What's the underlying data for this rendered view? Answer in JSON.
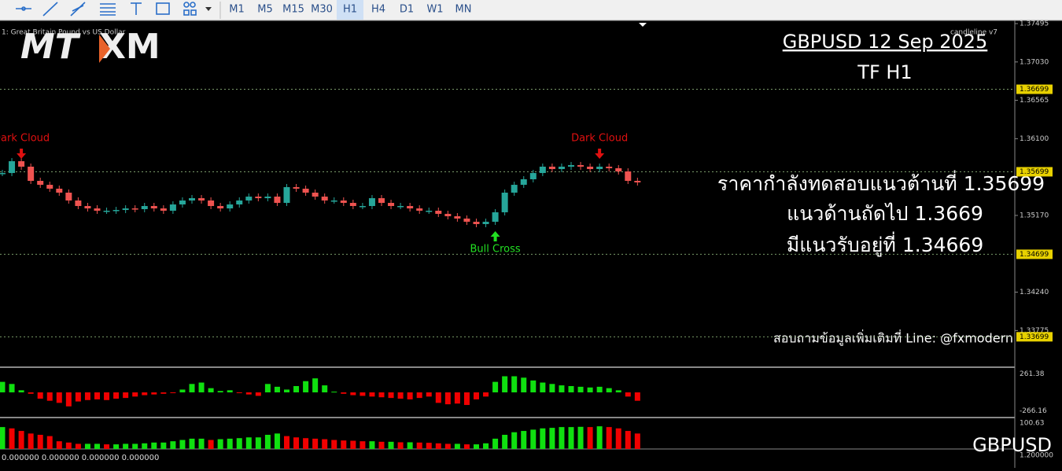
{
  "toolbar": {
    "timeframes": [
      "M1",
      "M5",
      "M15",
      "M30",
      "H1",
      "H4",
      "D1",
      "W1",
      "MN"
    ],
    "selected": "H1"
  },
  "chart": {
    "symbol_label": "1:  Great Britain Pound vs US Dollar",
    "indicator_label": "candleline v7",
    "logo": [
      "MT",
      "XM"
    ],
    "title": "GBPUSD 12 Sep 2025",
    "timeframe": "TF H1",
    "notes": [
      "ราคากำลังทดสอบแนวต้านที่  1.35699",
      "แนวด้านถัดไป 1.3669",
      "มีแนวรับอยู่ที่ 1.34669"
    ],
    "contact": "สอบถามข้อมูลเพิ่มเติมที่ Line: @fxmodern",
    "signals": [
      {
        "label": "Dark Cloud",
        "index": 2
      },
      {
        "label": "Dark Cloud",
        "index": 63
      },
      {
        "label": "Bull Cross",
        "index": 52
      }
    ],
    "price_axis": [
      {
        "value": 1.37495,
        "label": "1.37495"
      },
      {
        "value": 1.3703,
        "label": "1.37030"
      },
      {
        "value": 1.36565,
        "label": "1.36565"
      },
      {
        "value": 1.361,
        "label": "1.36100"
      },
      {
        "value": 1.3517,
        "label": "1.35170"
      },
      {
        "value": 1.3424,
        "label": "1.34240"
      },
      {
        "value": 1.33775,
        "label": "1.33775"
      }
    ],
    "levels": [
      1.36699,
      1.35699,
      1.34699,
      1.33699
    ],
    "candles": [
      1.35684,
      1.35827,
      1.35761,
      1.35589,
      1.35541,
      1.35494,
      1.35446,
      1.35351,
      1.35284,
      1.35255,
      1.35227,
      1.35227,
      1.35236,
      1.35255,
      1.35246,
      1.35284,
      1.35255,
      1.35227,
      1.35303,
      1.35351,
      1.35379,
      1.35351,
      1.35284,
      1.35255,
      1.35303,
      1.35351,
      1.35398,
      1.35379,
      1.35398,
      1.35322,
      1.35513,
      1.35494,
      1.35446,
      1.35398,
      1.35351,
      1.35351,
      1.35322,
      1.35284,
      1.35284,
      1.35379,
      1.35322,
      1.35284,
      1.35284,
      1.35255,
      1.35227,
      1.35227,
      1.35189,
      1.3516,
      1.35132,
      1.35093,
      1.35065,
      1.35093,
      1.35208,
      1.35446,
      1.35541,
      1.35608,
      1.35684,
      1.35761,
      1.35732,
      1.35761,
      1.3578,
      1.35761,
      1.35732,
      1.35761,
      1.35742,
      1.35703,
      1.35589,
      1.3557
    ],
    "footer_symbol": "GBPUSD"
  },
  "indicator1": {
    "range": [
      -266.16,
      261.38
    ],
    "values": [
      150,
      120,
      30,
      -20,
      -90,
      -120,
      -150,
      -200,
      -130,
      -110,
      -100,
      -110,
      -90,
      -80,
      -60,
      -40,
      -30,
      -20,
      -10,
      40,
      120,
      140,
      60,
      20,
      30,
      -10,
      -30,
      -50,
      120,
      80,
      40,
      90,
      160,
      200,
      100,
      10,
      -20,
      -40,
      -50,
      -60,
      -70,
      -80,
      -90,
      -100,
      -80,
      -60,
      -150,
      -170,
      -160,
      -180,
      -100,
      -60,
      150,
      230,
      230,
      210,
      170,
      140,
      120,
      100,
      90,
      80,
      70,
      80,
      60,
      30,
      -60,
      -120
    ]
  },
  "indicator2": {
    "max": 100.63,
    "label": "0.000000 0.000000 0.000000 0.000000",
    "scale_label": "1.200000",
    "values": [
      85,
      80,
      70,
      60,
      55,
      50,
      30,
      25,
      20,
      20,
      20,
      18,
      18,
      20,
      20,
      22,
      25,
      25,
      30,
      35,
      40,
      40,
      35,
      38,
      40,
      42,
      45,
      45,
      55,
      60,
      50,
      45,
      42,
      40,
      38,
      35,
      33,
      32,
      30,
      30,
      28,
      28,
      26,
      26,
      25,
      24,
      22,
      20,
      20,
      18,
      18,
      22,
      40,
      55,
      65,
      70,
      75,
      80,
      82,
      85,
      85,
      86,
      85,
      88,
      85,
      80,
      70,
      60
    ]
  }
}
